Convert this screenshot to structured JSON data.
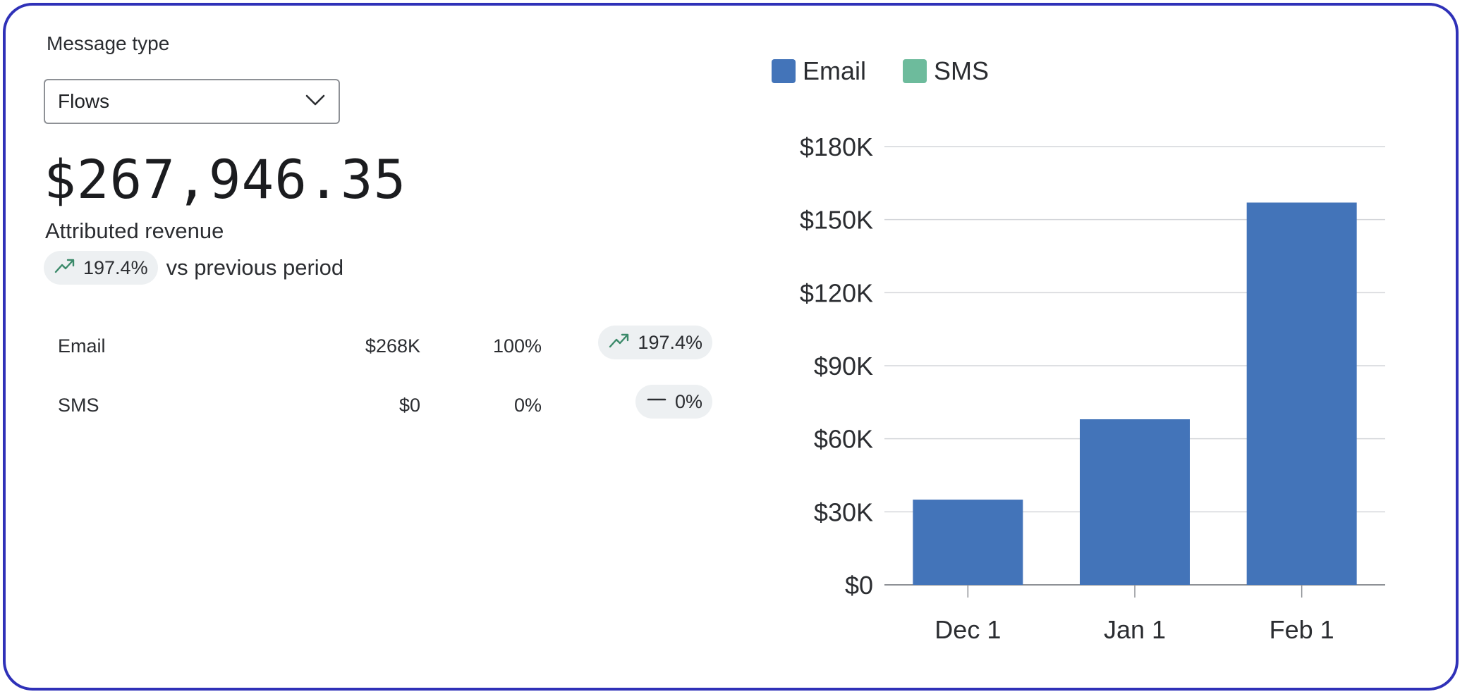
{
  "filter": {
    "label": "Message type",
    "selected": "Flows"
  },
  "summary": {
    "total": "$267,946.35",
    "caption": "Attributed revenue",
    "change": "197.4%",
    "change_suffix": "vs previous period"
  },
  "breakdown": [
    {
      "channel": "Email",
      "amount": "$268K",
      "share": "100%",
      "change": "197.4%",
      "trend": "up"
    },
    {
      "channel": "SMS",
      "amount": "$0",
      "share": "0%",
      "change": "0%",
      "trend": "flat"
    }
  ],
  "colors": {
    "email": "#4374b9",
    "sms": "#6dbb9c",
    "trend_up": "#3b8a6a",
    "grid": "#d4d6da",
    "border": "#2f31b8"
  },
  "icons": {
    "trend_up": "trend-up-icon",
    "trend_flat": "dash-icon",
    "dropdown": "chevron-down-icon"
  },
  "chart_data": {
    "type": "bar",
    "categories": [
      "Dec 1",
      "Jan 1",
      "Feb 1"
    ],
    "series": [
      {
        "name": "Email",
        "values": [
          35000,
          68000,
          157000
        ]
      },
      {
        "name": "SMS",
        "values": [
          0,
          0,
          0
        ]
      }
    ],
    "yticks": [
      "$0",
      "$30K",
      "$60K",
      "$90K",
      "$120K",
      "$150K",
      "$180K"
    ],
    "ylim": [
      0,
      180000
    ],
    "grid": true,
    "legend": "top-left"
  }
}
